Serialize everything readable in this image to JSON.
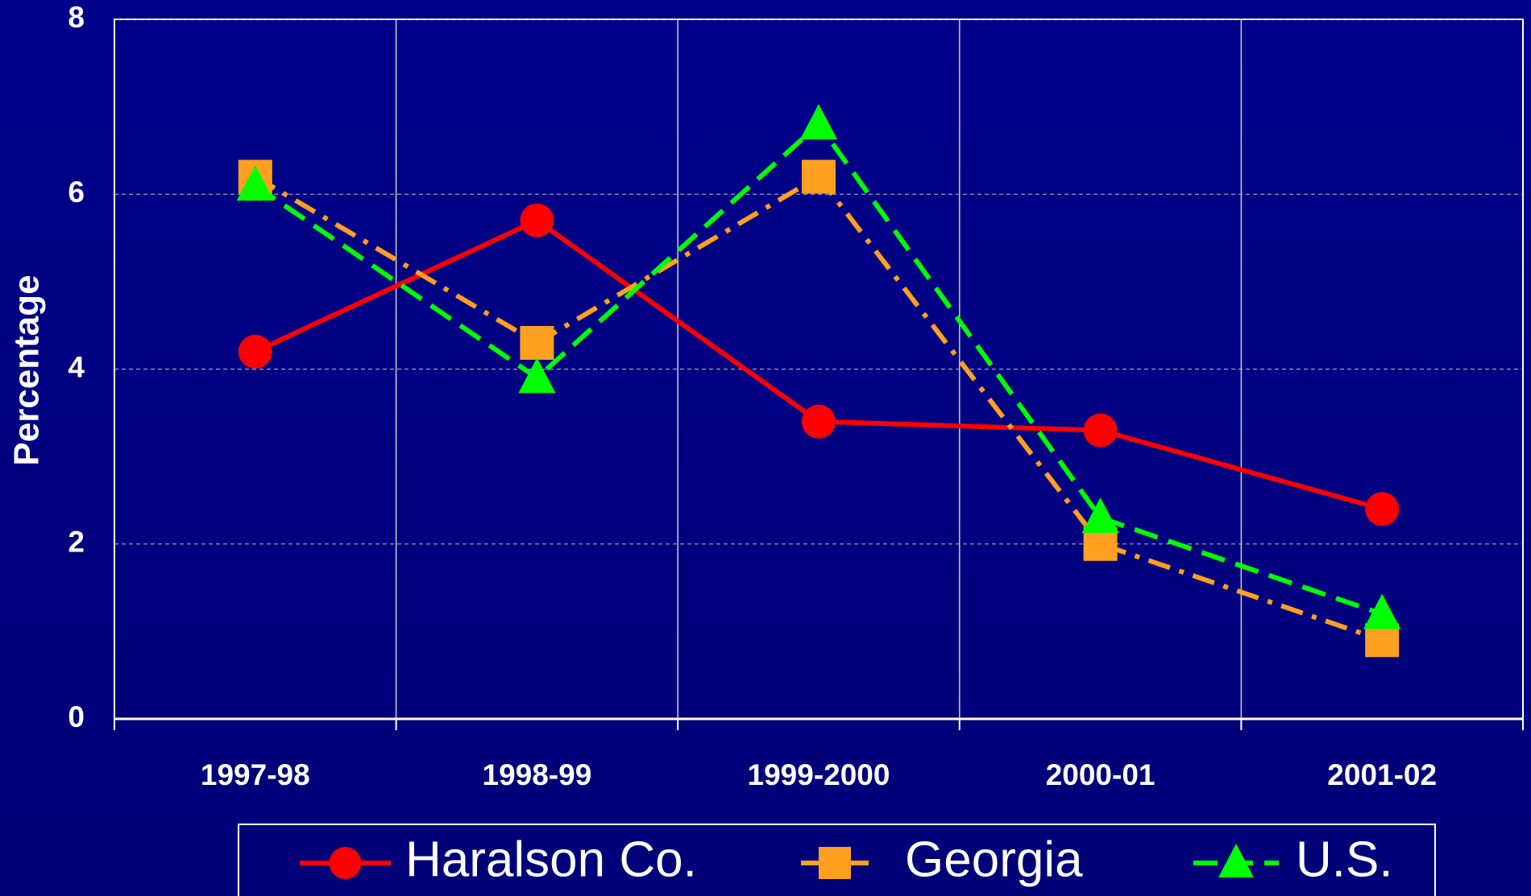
{
  "chart_data": {
    "type": "line",
    "y_label": "Percentage",
    "categories": [
      "1997-98",
      "1998-99",
      "1999-2000",
      "2000-01",
      "2001-02"
    ],
    "series": [
      {
        "name": "Haralson Co.",
        "color": "#ff0000",
        "marker": "circle",
        "line_style": "solid",
        "values": [
          4.2,
          5.7,
          3.4,
          3.3,
          2.4
        ]
      },
      {
        "name": "Georgia",
        "color": "#ffa020",
        "marker": "square",
        "line_style": "dash-dot",
        "values": [
          6.2,
          4.3,
          6.2,
          2.0,
          0.9
        ]
      },
      {
        "name": "U.S.",
        "color": "#00ff00",
        "marker": "triangle",
        "line_style": "dashed",
        "values": [
          6.1,
          3.9,
          6.8,
          2.3,
          1.2
        ]
      }
    ],
    "ylim": [
      0,
      8
    ],
    "yticks": [
      0,
      2,
      4,
      6,
      8
    ],
    "grid": true,
    "legend": "bottom"
  }
}
